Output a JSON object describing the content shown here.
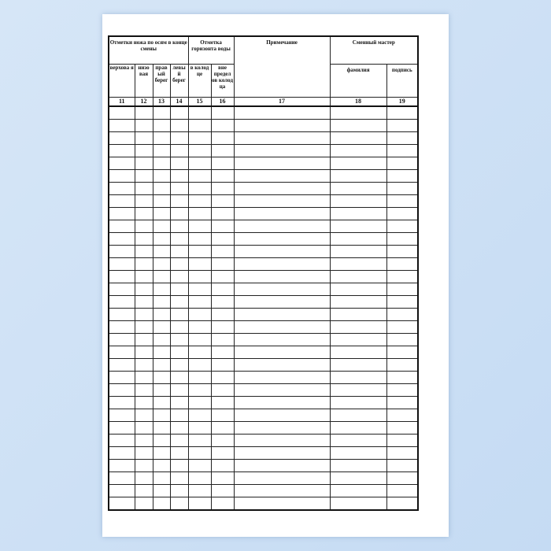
{
  "header": {
    "group_knife": "Отметки ножа по осям в конце смены",
    "group_water": "Отметка горизонта воды",
    "note": "Примечание",
    "group_master": "Сменный мастер",
    "columns": [
      "верхова я",
      "низо вая",
      "прав ый берег",
      "левы й берег",
      "в колод це",
      "вне предел ов колод ца",
      "фамилия",
      "подпись"
    ],
    "numbers": [
      "11",
      "12",
      "13",
      "14",
      "15",
      "16",
      "17",
      "18",
      "19"
    ]
  },
  "row_count": 32
}
